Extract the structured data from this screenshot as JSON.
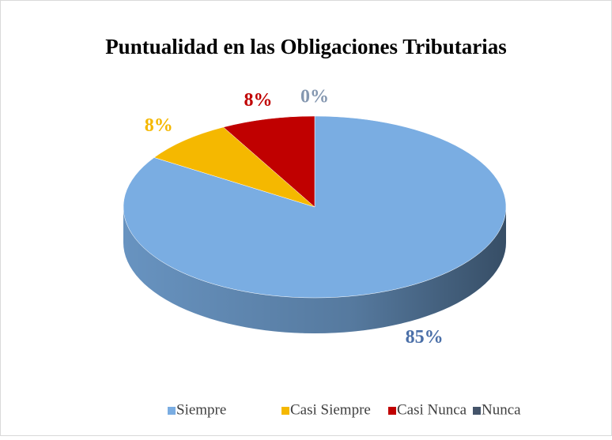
{
  "chart_data": {
    "type": "pie",
    "title": "Puntualidad en las Obligaciones Tributarias",
    "categories": [
      "Siempre",
      "Casi Siempre",
      "Casi Nunca",
      "Nunca"
    ],
    "values": [
      85,
      8,
      8,
      0
    ],
    "value_labels": [
      "85%",
      "8%",
      "8%",
      "0%"
    ],
    "colors": [
      "#7aade2",
      "#f5b800",
      "#c00000",
      "#44546a"
    ],
    "legend": "bottom"
  }
}
